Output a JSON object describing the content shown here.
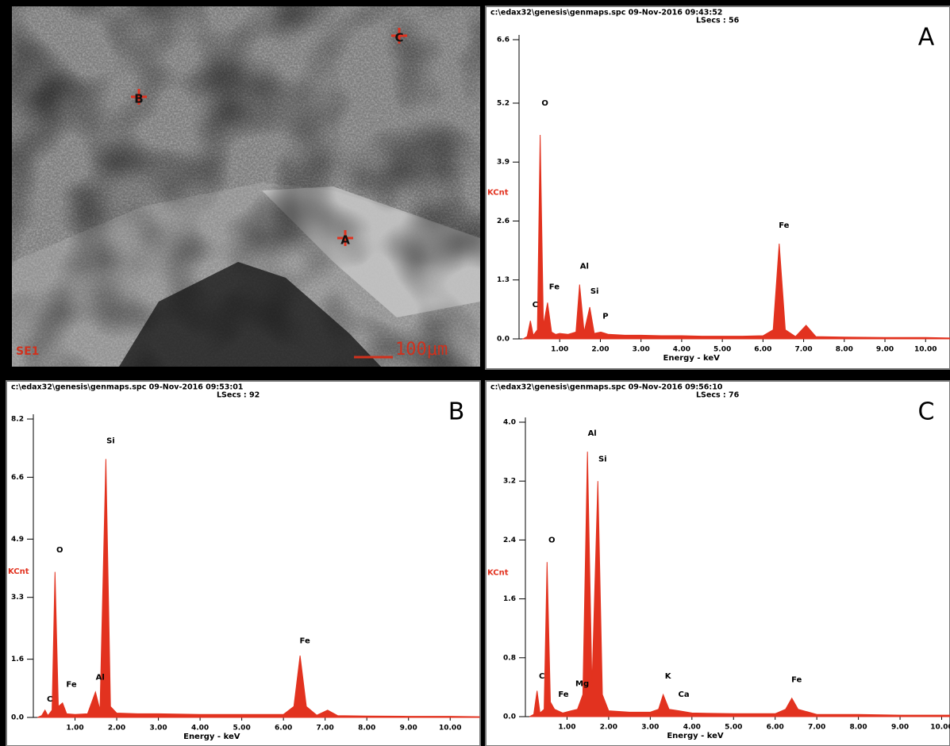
{
  "sem_image": {
    "markers": [
      "A",
      "B",
      "C"
    ],
    "detector": "SE1",
    "scale_bar": "100μm"
  },
  "chart_data": [
    {
      "type": "area",
      "panel": "A",
      "title": "c:\\edax32\\genesis\\genmaps.spc 09-Nov-2016 09:43:52",
      "subtitle": "LSecs : 56",
      "ylabel": "KCnt",
      "xlabel": "Energy - keV",
      "x": [
        0.1,
        0.2,
        0.28,
        0.35,
        0.45,
        0.52,
        0.6,
        0.7,
        0.8,
        0.9,
        1.0,
        1.2,
        1.4,
        1.49,
        1.6,
        1.74,
        1.85,
        2.01,
        2.2,
        2.6,
        3.0,
        3.5,
        4.0,
        4.5,
        5.0,
        5.5,
        6.0,
        6.25,
        6.4,
        6.55,
        6.8,
        7.06,
        7.3,
        8,
        9,
        10,
        10.6
      ],
      "series": [
        {
          "color": "#e2321f",
          "values": [
            0,
            0.05,
            0.4,
            0.08,
            0.2,
            4.5,
            0.3,
            0.8,
            0.15,
            0.1,
            0.12,
            0.1,
            0.15,
            1.2,
            0.15,
            0.7,
            0.12,
            0.15,
            0.1,
            0.08,
            0.08,
            0.07,
            0.07,
            0.06,
            0.06,
            0.06,
            0.07,
            0.2,
            2.1,
            0.2,
            0.05,
            0.3,
            0.05,
            0.04,
            0.03,
            0.03,
            0.02
          ]
        }
      ],
      "peak_labels": [
        {
          "text": "C",
          "x": 0.28,
          "y": 0.75
        },
        {
          "text": "O",
          "x": 0.52,
          "y": 5.2
        },
        {
          "text": "Fe",
          "x": 0.75,
          "y": 1.15
        },
        {
          "text": "Al",
          "x": 1.49,
          "y": 1.6
        },
        {
          "text": "Si",
          "x": 1.74,
          "y": 1.05
        },
        {
          "text": "P",
          "x": 2.01,
          "y": 0.5
        },
        {
          "text": "Fe",
          "x": 6.4,
          "y": 2.5
        }
      ],
      "xlim": [
        0,
        10.6
      ],
      "ylim": [
        0,
        6.6
      ],
      "xticks": [
        {
          "value": 1,
          "label": "1.00"
        },
        {
          "value": 2,
          "label": "2.00"
        },
        {
          "value": 3,
          "label": "3.00"
        },
        {
          "value": 4,
          "label": "4.00"
        },
        {
          "value": 5,
          "label": "5.00"
        },
        {
          "value": 6,
          "label": "6.00"
        },
        {
          "value": 7,
          "label": "7.00"
        },
        {
          "value": 8,
          "label": "8.00"
        },
        {
          "value": 9,
          "label": "9.00"
        },
        {
          "value": 10,
          "label": "10.00"
        }
      ],
      "yticks": [
        {
          "value": 0,
          "label": "0.0"
        },
        1.3,
        2.6,
        3.9,
        5.2,
        6.6
      ]
    },
    {
      "type": "area",
      "panel": "B",
      "title": "c:\\edax32\\genesis\\genmaps.spc 09-Nov-2016 09:53:01",
      "subtitle": "LSecs : 92",
      "ylabel": "KCnt",
      "xlabel": "Energy - keV",
      "x": [
        0.1,
        0.2,
        0.28,
        0.35,
        0.45,
        0.52,
        0.6,
        0.7,
        0.8,
        1.0,
        1.3,
        1.49,
        1.6,
        1.74,
        1.85,
        2.0,
        2.5,
        3.0,
        4.0,
        5.0,
        6.0,
        6.25,
        6.4,
        6.55,
        6.8,
        7.06,
        7.3,
        8,
        9,
        10,
        10.7
      ],
      "series": [
        {
          "color": "#e2321f",
          "values": [
            0,
            0.05,
            0.2,
            0.05,
            0.2,
            4.0,
            0.3,
            0.4,
            0.1,
            0.08,
            0.1,
            0.7,
            0.2,
            7.1,
            0.3,
            0.12,
            0.1,
            0.1,
            0.08,
            0.08,
            0.08,
            0.3,
            1.7,
            0.3,
            0.06,
            0.2,
            0.05,
            0.04,
            0.03,
            0.03,
            0.02
          ]
        }
      ],
      "peak_labels": [
        {
          "text": "C",
          "x": 0.28,
          "y": 0.5
        },
        {
          "text": "O",
          "x": 0.52,
          "y": 4.6
        },
        {
          "text": "Fe",
          "x": 0.8,
          "y": 0.9
        },
        {
          "text": "Al",
          "x": 1.49,
          "y": 1.1
        },
        {
          "text": "Si",
          "x": 1.74,
          "y": 7.6
        },
        {
          "text": "Fe",
          "x": 6.4,
          "y": 2.1
        }
      ],
      "xlim": [
        0,
        10.7
      ],
      "ylim": [
        0,
        8.2
      ],
      "xticks": [
        {
          "value": 1,
          "label": "1.00"
        },
        {
          "value": 2,
          "label": "2.00"
        },
        {
          "value": 3,
          "label": "3.00"
        },
        {
          "value": 4,
          "label": "4.00"
        },
        {
          "value": 5,
          "label": "5.00"
        },
        {
          "value": 6,
          "label": "6.00"
        },
        {
          "value": 7,
          "label": "7.00"
        },
        {
          "value": 8,
          "label": "8.00"
        },
        {
          "value": 9,
          "label": "9.00"
        },
        {
          "value": 10,
          "label": "10.00"
        }
      ],
      "yticks": [
        {
          "value": 0,
          "label": "0.0"
        },
        1.6,
        3.3,
        4.9,
        6.6,
        8.2
      ]
    },
    {
      "type": "area",
      "panel": "C",
      "title": "c:\\edax32\\genesis\\genmaps.spc 09-Nov-2016 09:56:10",
      "subtitle": "LSecs : 76",
      "ylabel": "KCnt",
      "xlabel": "Energy - keV",
      "x": [
        0.1,
        0.2,
        0.28,
        0.35,
        0.45,
        0.52,
        0.6,
        0.7,
        0.9,
        1.1,
        1.25,
        1.38,
        1.49,
        1.6,
        1.74,
        1.85,
        2.0,
        2.5,
        3.0,
        3.2,
        3.31,
        3.45,
        3.69,
        4.0,
        5.0,
        6.0,
        6.25,
        6.4,
        6.55,
        7.0,
        8,
        9,
        10,
        10.2
      ],
      "series": [
        {
          "color": "#e2321f",
          "values": [
            0,
            0.03,
            0.35,
            0.05,
            0.1,
            2.1,
            0.2,
            0.1,
            0.05,
            0.08,
            0.1,
            0.3,
            3.6,
            0.4,
            3.2,
            0.3,
            0.08,
            0.06,
            0.06,
            0.1,
            0.3,
            0.1,
            0.08,
            0.05,
            0.04,
            0.04,
            0.1,
            0.25,
            0.1,
            0.03,
            0.03,
            0.02,
            0.02,
            0.02
          ]
        }
      ],
      "peak_labels": [
        {
          "text": "C",
          "x": 0.28,
          "y": 0.55
        },
        {
          "text": "O",
          "x": 0.52,
          "y": 2.4
        },
        {
          "text": "Fe",
          "x": 0.8,
          "y": 0.3
        },
        {
          "text": "Mg",
          "x": 1.25,
          "y": 0.45
        },
        {
          "text": "Al",
          "x": 1.49,
          "y": 3.85
        },
        {
          "text": "Si",
          "x": 1.74,
          "y": 3.5
        },
        {
          "text": "K",
          "x": 3.31,
          "y": 0.55
        },
        {
          "text": "Ca",
          "x": 3.69,
          "y": 0.3
        },
        {
          "text": "Fe",
          "x": 6.4,
          "y": 0.5
        }
      ],
      "xlim": [
        0,
        10.2
      ],
      "ylim": [
        0,
        4.0
      ],
      "xticks": [
        {
          "value": 1,
          "label": "1.00"
        },
        {
          "value": 2,
          "label": "2.00"
        },
        {
          "value": 3,
          "label": "3.00"
        },
        {
          "value": 4,
          "label": "4.00"
        },
        {
          "value": 5,
          "label": "5.00"
        },
        {
          "value": 6,
          "label": "6.00"
        },
        {
          "value": 7,
          "label": "7.00"
        },
        {
          "value": 8,
          "label": "8.00"
        },
        {
          "value": 9,
          "label": "9.00"
        },
        {
          "value": 10,
          "label": "10.00"
        }
      ],
      "yticks": [
        {
          "value": 0,
          "label": "0.0"
        },
        0.8,
        1.6,
        2.4,
        3.2,
        {
          "value": 4,
          "label": "4.0"
        }
      ]
    }
  ]
}
